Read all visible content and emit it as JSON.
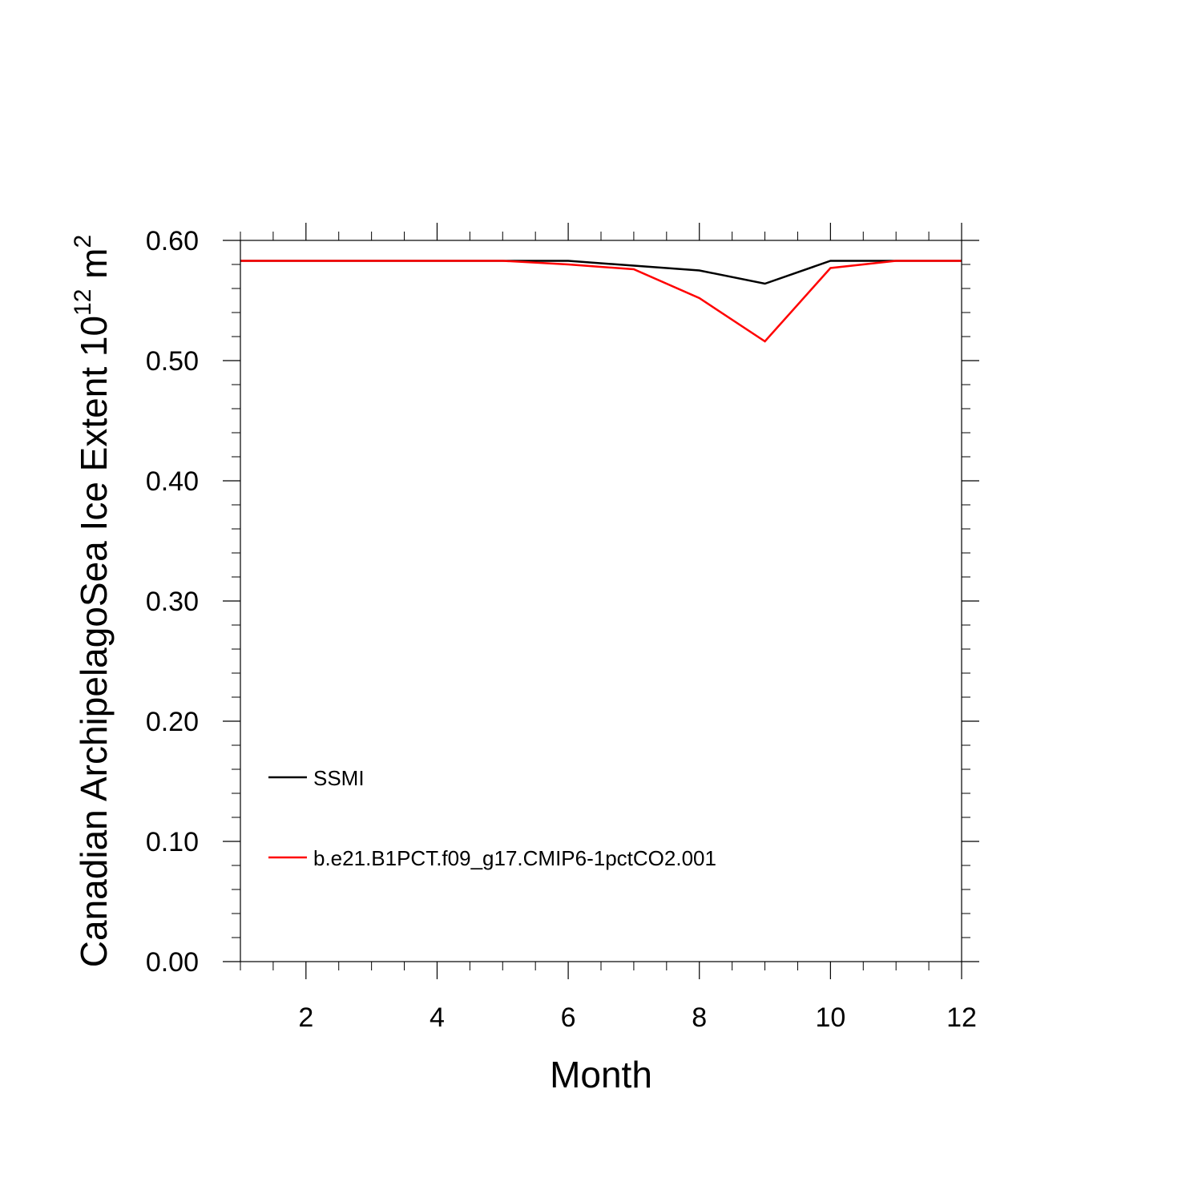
{
  "chart_data": {
    "type": "line",
    "title": "",
    "xlabel": "Month",
    "ylabel": {
      "main": "Canadian ArchipelagoSea Ice Extent 10",
      "sup1": "12",
      "unit": " m",
      "sup2": "2"
    },
    "xlim": [
      1,
      12
    ],
    "ylim": [
      0.0,
      0.6
    ],
    "x_major_ticks": [
      2,
      4,
      6,
      8,
      10,
      12
    ],
    "x_tick_labels": [
      "2",
      "4",
      "6",
      "8",
      "10",
      "12"
    ],
    "x_minor_step": 0.5,
    "y_major_ticks": [
      0.0,
      0.1,
      0.2,
      0.3,
      0.4,
      0.5,
      0.6
    ],
    "y_tick_labels": [
      "0.00",
      "0.10",
      "0.20",
      "0.30",
      "0.40",
      "0.50",
      "0.60"
    ],
    "y_minor_step": 0.02,
    "grid": false,
    "legend_position": "bottom-left",
    "x": [
      1,
      2,
      3,
      4,
      5,
      6,
      7,
      8,
      9,
      10,
      11,
      12
    ],
    "series": [
      {
        "name": "SSMI",
        "color": "#000000",
        "values": [
          0.583,
          0.583,
          0.583,
          0.583,
          0.583,
          0.583,
          0.579,
          0.575,
          0.564,
          0.583,
          0.583,
          0.583
        ]
      },
      {
        "name": "b.e21.B1PCT.f09_g17.CMIP6-1pctCO2.001",
        "color": "#ff0000",
        "values": [
          0.583,
          0.583,
          0.583,
          0.583,
          0.583,
          0.58,
          0.576,
          0.552,
          0.516,
          0.577,
          0.583,
          0.583
        ]
      }
    ]
  }
}
